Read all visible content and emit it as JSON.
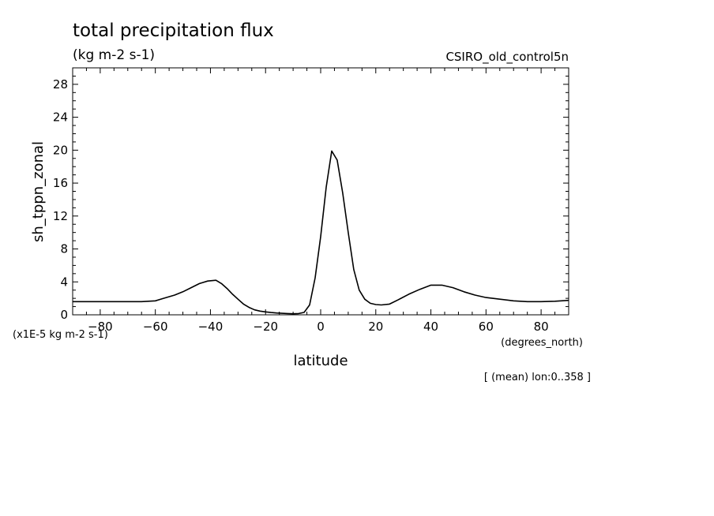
{
  "header": {
    "title": "total precipitation flux",
    "units": "(kg m-2 s-1)",
    "dataset": "CSIRO_old_control5n",
    "scale_note": "(x1E-5 kg m-2 s-1)",
    "x_units": "(degrees_north)",
    "region_note": "[ (mean) lon:0..358 ]"
  },
  "chart_data": {
    "type": "line",
    "xlabel": "latitude",
    "ylabel": "sh_tppn_zonal",
    "xlim": [
      -90,
      90
    ],
    "ylim": [
      0,
      30
    ],
    "xticks": [
      -80,
      -60,
      -40,
      -20,
      0,
      20,
      40,
      60,
      80
    ],
    "yticks": [
      0,
      4,
      8,
      12,
      16,
      20,
      24,
      28
    ],
    "xtick_labels": [
      "−80",
      "−60",
      "−40",
      "−20",
      "0",
      "20",
      "40",
      "60",
      "80"
    ],
    "ytick_labels": [
      "0",
      "4",
      "8",
      "12",
      "16",
      "20",
      "24",
      "28"
    ],
    "grid": false,
    "line_color": "#000000",
    "series": [
      {
        "x": [
          -90,
          -85,
          -80,
          -75,
          -70,
          -65,
          -60,
          -57,
          -53,
          -50,
          -47,
          -44,
          -41,
          -38,
          -36,
          -34,
          -32,
          -30,
          -28,
          -26,
          -24,
          -22,
          -20,
          -18,
          -16,
          -14,
          -12,
          -10,
          -8,
          -6,
          -4,
          -2,
          0,
          2,
          4,
          6,
          8,
          10,
          12,
          14,
          16,
          18,
          20,
          22,
          25,
          28,
          32,
          36,
          40,
          44,
          48,
          52,
          56,
          60,
          65,
          70,
          75,
          80,
          85,
          90
        ],
        "y": [
          1.6,
          1.6,
          1.6,
          1.6,
          1.6,
          1.6,
          1.7,
          2.0,
          2.4,
          2.8,
          3.3,
          3.8,
          4.1,
          4.2,
          3.8,
          3.2,
          2.5,
          1.9,
          1.3,
          0.9,
          0.6,
          0.45,
          0.35,
          0.28,
          0.22,
          0.18,
          0.15,
          0.12,
          0.15,
          0.3,
          1.2,
          4.5,
          9.5,
          15.5,
          19.9,
          18.8,
          14.8,
          10.0,
          5.5,
          3.0,
          1.9,
          1.4,
          1.25,
          1.2,
          1.3,
          1.8,
          2.5,
          3.1,
          3.6,
          3.6,
          3.3,
          2.8,
          2.4,
          2.1,
          1.9,
          1.7,
          1.6,
          1.6,
          1.65,
          1.75
        ]
      }
    ]
  }
}
